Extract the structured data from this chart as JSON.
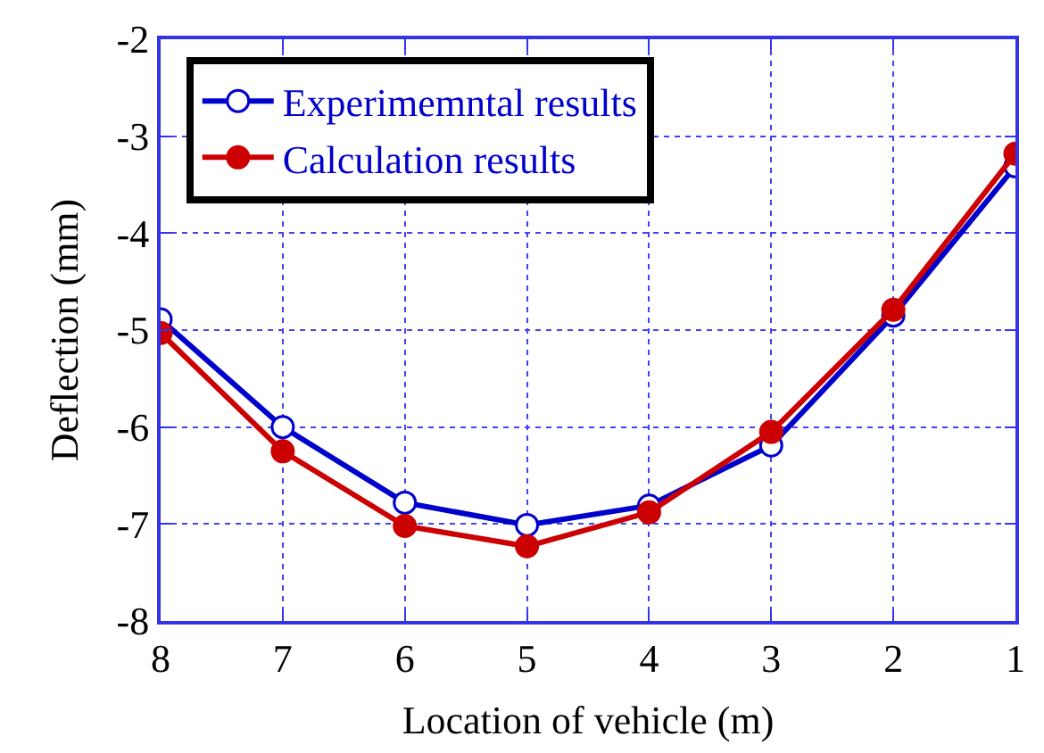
{
  "chart_data": {
    "type": "line",
    "xlabel": "Location of vehicle (m)",
    "ylabel": "Deflection (mm)",
    "x": [
      8,
      7,
      6,
      5,
      4,
      3,
      2,
      1
    ],
    "xlim": [
      8,
      1
    ],
    "xticks": [
      8,
      7,
      6,
      5,
      4,
      3,
      2,
      1
    ],
    "ylim": [
      -8,
      -2
    ],
    "yticks": [
      -8,
      -7,
      -6,
      -5,
      -4,
      -3,
      -2
    ],
    "grid": true,
    "legend": "top left",
    "marker": "circle",
    "line_style": "solid",
    "series": [
      {
        "name": "Experimemntal results",
        "color": "#0000cc",
        "values": [
          -4.89,
          -6.0,
          -6.78,
          -7.01,
          -6.81,
          -6.19,
          -4.85,
          -3.31
        ]
      },
      {
        "name": "Calculation results",
        "color": "#cc0000",
        "values": [
          -5.03,
          -6.25,
          -7.02,
          -7.23,
          -6.88,
          -6.05,
          -4.79,
          -3.18
        ]
      }
    ]
  }
}
